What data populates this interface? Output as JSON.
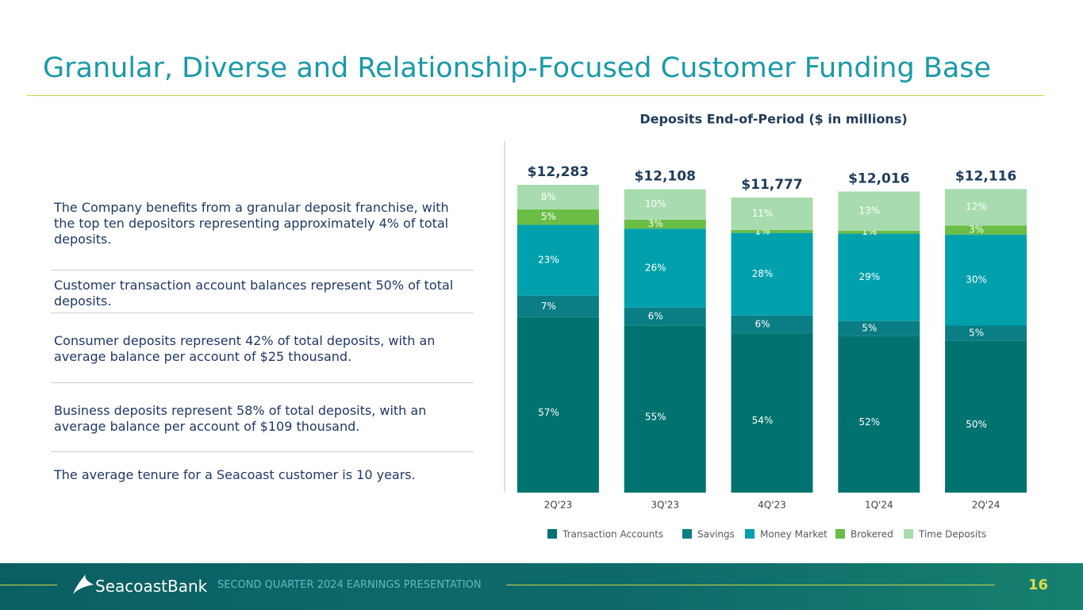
{
  "slide": {
    "title": "Granular, Diverse and Relationship-Focused Customer Funding Base",
    "bullets": [
      "The Company benefits from a granular deposit franchise, with the top ten depositors representing approximately 4% of total deposits.",
      "Customer transaction account balances represent 50% of total deposits.",
      "Consumer deposits represent 42% of total deposits, with an average balance per account of $25 thousand.",
      "Business deposits represent 58% of total deposits, with an average balance per account of $109 thousand.",
      "The average tenure for a Seacoast customer is 10 years."
    ],
    "footer": {
      "logo": "SeacoastBank",
      "text": "SECOND QUARTER 2024 EARNINGS PRESENTATION",
      "page": "16"
    }
  },
  "chart_data": {
    "type": "stacked_bar",
    "title": "Deposits End-of-Period ($ in millions)",
    "categories": [
      "2Q'23",
      "3Q'23",
      "4Q'23",
      "1Q'24",
      "2Q'24"
    ],
    "series": [
      {
        "name": "Transaction Accounts",
        "color": "#007370",
        "values": [
          57,
          55,
          54,
          52,
          50
        ],
        "value_labels": [
          "57%",
          "55%",
          "54%",
          "52%",
          "50%"
        ]
      },
      {
        "name": "Savings",
        "color": "#0a7e84",
        "values": [
          7,
          6,
          6,
          5,
          5
        ],
        "value_labels": [
          "7%",
          "6%",
          "6%",
          "5%",
          "5%"
        ]
      },
      {
        "name": "Money Market",
        "color": "#00a0ad",
        "values": [
          23,
          26,
          28,
          29,
          30
        ],
        "value_labels": [
          "23%",
          "26%",
          "28%",
          "29%",
          "30%"
        ]
      },
      {
        "name": "Brokered",
        "color": "#6abd45",
        "values": [
          5,
          3,
          1,
          1,
          3
        ],
        "value_labels": [
          "5%",
          "3%",
          "1%",
          "1%",
          "3%"
        ]
      },
      {
        "name": "Time Deposits",
        "color": "#a8dcae",
        "values": [
          8,
          10,
          11,
          13,
          12
        ],
        "value_labels": [
          "8%",
          "10%",
          "11%",
          "13%",
          "12%"
        ]
      }
    ],
    "totals": {
      "values": [
        12283,
        12108,
        11777,
        12016,
        12116
      ],
      "value_labels": [
        "$12,283",
        "$12,108",
        "$11,777",
        "$12,016",
        "$12,116"
      ]
    },
    "legend": "bottom"
  }
}
